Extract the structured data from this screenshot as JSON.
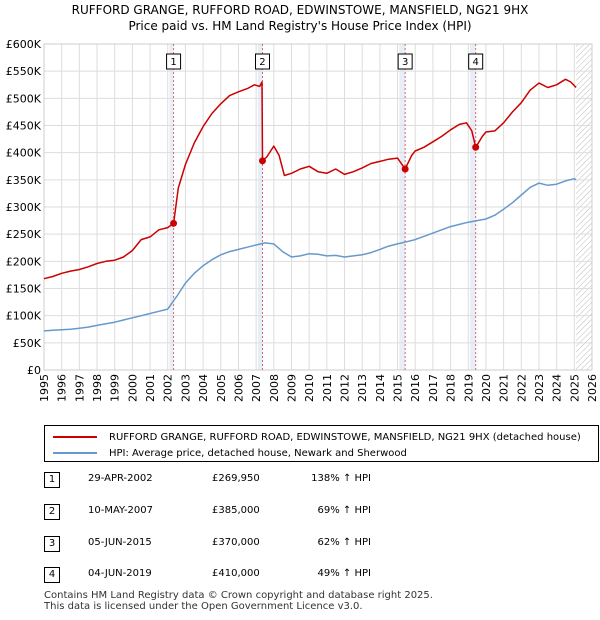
{
  "chart_data": {
    "type": "line",
    "title": "RUFFORD GRANGE, RUFFORD ROAD, EDWINSTOWE, MANSFIELD, NG21 9HX",
    "subtitle": "Price paid vs. HM Land Registry's House Price Index (HPI)",
    "xlim": [
      1995,
      2026
    ],
    "ylim": [
      0,
      600000
    ],
    "x_ticks": [
      "1995",
      "1996",
      "1997",
      "1998",
      "1999",
      "2000",
      "2001",
      "2002",
      "2003",
      "2004",
      "2005",
      "2006",
      "2007",
      "2008",
      "2009",
      "2010",
      "2011",
      "2012",
      "2013",
      "2014",
      "2015",
      "2016",
      "2017",
      "2018",
      "2019",
      "2020",
      "2021",
      "2022",
      "2023",
      "2024",
      "2025",
      "2026"
    ],
    "y_ticks": [
      {
        "value": 0,
        "label": "£0"
      },
      {
        "value": 50000,
        "label": "£50K"
      },
      {
        "value": 100000,
        "label": "£100K"
      },
      {
        "value": 150000,
        "label": "£150K"
      },
      {
        "value": 200000,
        "label": "£200K"
      },
      {
        "value": 250000,
        "label": "£250K"
      },
      {
        "value": 300000,
        "label": "£300K"
      },
      {
        "value": 350000,
        "label": "£350K"
      },
      {
        "value": 400000,
        "label": "£400K"
      },
      {
        "value": 450000,
        "label": "£450K"
      },
      {
        "value": 500000,
        "label": "£500K"
      },
      {
        "value": 550000,
        "label": "£550K"
      },
      {
        "value": 600000,
        "label": "£600K"
      }
    ],
    "grid": true,
    "shaded_regions": [
      {
        "from": 2002.1,
        "to": 2002.33
      },
      {
        "from": 2007.1,
        "to": 2007.36
      },
      {
        "from": 2015.1,
        "to": 2015.43
      },
      {
        "from": 2019.1,
        "to": 2019.42
      }
    ],
    "hatched_after": 2025.1,
    "series": [
      {
        "name": "RUFFORD GRANGE, RUFFORD ROAD, EDWINSTOWE, MANSFIELD, NG21 9HX (detached house)",
        "color": "#cc0000",
        "points": [
          [
            1995.0,
            168000
          ],
          [
            1995.5,
            172000
          ],
          [
            1996.0,
            178000
          ],
          [
            1996.5,
            182000
          ],
          [
            1997.0,
            185000
          ],
          [
            1997.5,
            190000
          ],
          [
            1998.0,
            196000
          ],
          [
            1998.5,
            200000
          ],
          [
            1999.0,
            202000
          ],
          [
            1999.5,
            208000
          ],
          [
            2000.0,
            220000
          ],
          [
            2000.5,
            240000
          ],
          [
            2001.0,
            245000
          ],
          [
            2001.5,
            258000
          ],
          [
            2002.0,
            262000
          ],
          [
            2002.33,
            269950
          ],
          [
            2002.6,
            335000
          ],
          [
            2003.0,
            378000
          ],
          [
            2003.5,
            418000
          ],
          [
            2004.0,
            448000
          ],
          [
            2004.5,
            472000
          ],
          [
            2005.0,
            490000
          ],
          [
            2005.5,
            505000
          ],
          [
            2006.0,
            512000
          ],
          [
            2006.5,
            518000
          ],
          [
            2006.9,
            525000
          ],
          [
            2007.2,
            522000
          ],
          [
            2007.33,
            530000
          ],
          [
            2007.36,
            385000
          ],
          [
            2007.6,
            392000
          ],
          [
            2008.0,
            412000
          ],
          [
            2008.3,
            395000
          ],
          [
            2008.6,
            358000
          ],
          [
            2009.0,
            362000
          ],
          [
            2009.5,
            370000
          ],
          [
            2010.0,
            375000
          ],
          [
            2010.5,
            365000
          ],
          [
            2011.0,
            362000
          ],
          [
            2011.5,
            370000
          ],
          [
            2012.0,
            360000
          ],
          [
            2012.5,
            365000
          ],
          [
            2013.0,
            372000
          ],
          [
            2013.5,
            380000
          ],
          [
            2014.0,
            384000
          ],
          [
            2014.5,
            388000
          ],
          [
            2015.0,
            390000
          ],
          [
            2015.43,
            370000
          ],
          [
            2015.8,
            395000
          ],
          [
            2016.0,
            403000
          ],
          [
            2016.5,
            410000
          ],
          [
            2017.0,
            420000
          ],
          [
            2017.5,
            430000
          ],
          [
            2018.0,
            442000
          ],
          [
            2018.5,
            452000
          ],
          [
            2018.9,
            455000
          ],
          [
            2019.2,
            440000
          ],
          [
            2019.42,
            410000
          ],
          [
            2019.8,
            430000
          ],
          [
            2020.0,
            438000
          ],
          [
            2020.5,
            440000
          ],
          [
            2021.0,
            455000
          ],
          [
            2021.5,
            475000
          ],
          [
            2022.0,
            492000
          ],
          [
            2022.5,
            515000
          ],
          [
            2023.0,
            528000
          ],
          [
            2023.5,
            520000
          ],
          [
            2024.0,
            525000
          ],
          [
            2024.5,
            535000
          ],
          [
            2024.8,
            530000
          ],
          [
            2025.1,
            520000
          ]
        ]
      },
      {
        "name": "HPI: Average price, detached house, Newark and Sherwood",
        "color": "#6699cc",
        "points": [
          [
            1995.0,
            72000
          ],
          [
            1995.5,
            73000
          ],
          [
            1996.0,
            74000
          ],
          [
            1996.5,
            75000
          ],
          [
            1997.0,
            77000
          ],
          [
            1997.5,
            79000
          ],
          [
            1998.0,
            82000
          ],
          [
            1998.5,
            85000
          ],
          [
            1999.0,
            88000
          ],
          [
            1999.5,
            92000
          ],
          [
            2000.0,
            96000
          ],
          [
            2000.5,
            100000
          ],
          [
            2001.0,
            104000
          ],
          [
            2001.5,
            108000
          ],
          [
            2002.0,
            112000
          ],
          [
            2002.5,
            135000
          ],
          [
            2003.0,
            160000
          ],
          [
            2003.5,
            178000
          ],
          [
            2004.0,
            192000
          ],
          [
            2004.5,
            203000
          ],
          [
            2005.0,
            212000
          ],
          [
            2005.5,
            218000
          ],
          [
            2006.0,
            222000
          ],
          [
            2006.5,
            226000
          ],
          [
            2007.0,
            230000
          ],
          [
            2007.5,
            234000
          ],
          [
            2008.0,
            232000
          ],
          [
            2008.5,
            218000
          ],
          [
            2009.0,
            208000
          ],
          [
            2009.5,
            210000
          ],
          [
            2010.0,
            214000
          ],
          [
            2010.5,
            213000
          ],
          [
            2011.0,
            210000
          ],
          [
            2011.5,
            211000
          ],
          [
            2012.0,
            208000
          ],
          [
            2012.5,
            210000
          ],
          [
            2013.0,
            212000
          ],
          [
            2013.5,
            216000
          ],
          [
            2014.0,
            222000
          ],
          [
            2014.5,
            228000
          ],
          [
            2015.0,
            232000
          ],
          [
            2015.5,
            236000
          ],
          [
            2016.0,
            240000
          ],
          [
            2016.5,
            246000
          ],
          [
            2017.0,
            252000
          ],
          [
            2017.5,
            258000
          ],
          [
            2018.0,
            264000
          ],
          [
            2018.5,
            268000
          ],
          [
            2019.0,
            272000
          ],
          [
            2019.5,
            275000
          ],
          [
            2020.0,
            278000
          ],
          [
            2020.5,
            285000
          ],
          [
            2021.0,
            296000
          ],
          [
            2021.5,
            308000
          ],
          [
            2022.0,
            322000
          ],
          [
            2022.5,
            336000
          ],
          [
            2023.0,
            344000
          ],
          [
            2023.5,
            340000
          ],
          [
            2024.0,
            342000
          ],
          [
            2024.5,
            348000
          ],
          [
            2025.0,
            352000
          ],
          [
            2025.1,
            350000
          ]
        ]
      }
    ],
    "sale_markers": [
      {
        "label": "1",
        "x": 2002.33,
        "y": 269950
      },
      {
        "label": "2",
        "x": 2007.36,
        "y": 385000
      },
      {
        "label": "3",
        "x": 2015.43,
        "y": 370000
      },
      {
        "label": "4",
        "x": 2019.42,
        "y": 410000
      }
    ]
  },
  "header": {
    "title": "RUFFORD GRANGE, RUFFORD ROAD, EDWINSTOWE, MANSFIELD, NG21 9HX",
    "subtitle": "Price paid vs. HM Land Registry's House Price Index (HPI)"
  },
  "legend": {
    "property_label": "RUFFORD GRANGE, RUFFORD ROAD, EDWINSTOWE, MANSFIELD, NG21 9HX (detached house)",
    "hpi_label": "HPI: Average price, detached house, Newark and Sherwood"
  },
  "sales": [
    {
      "num": "1",
      "date": "29-APR-2002",
      "price": "£269,950",
      "hpi": "138% ↑ HPI"
    },
    {
      "num": "2",
      "date": "10-MAY-2007",
      "price": "£385,000",
      "hpi": "69% ↑ HPI"
    },
    {
      "num": "3",
      "date": "05-JUN-2015",
      "price": "£370,000",
      "hpi": "62% ↑ HPI"
    },
    {
      "num": "4",
      "date": "04-JUN-2019",
      "price": "£410,000",
      "hpi": "49% ↑ HPI"
    }
  ],
  "footer": {
    "line1": "Contains HM Land Registry data © Crown copyright and database right 2025.",
    "line2": "This data is licensed under the Open Government Licence v3.0."
  },
  "colors": {
    "property_line": "#cc0000",
    "hpi_line": "#6699cc",
    "grid": "#dddddd",
    "shade": "#e8eef8"
  }
}
